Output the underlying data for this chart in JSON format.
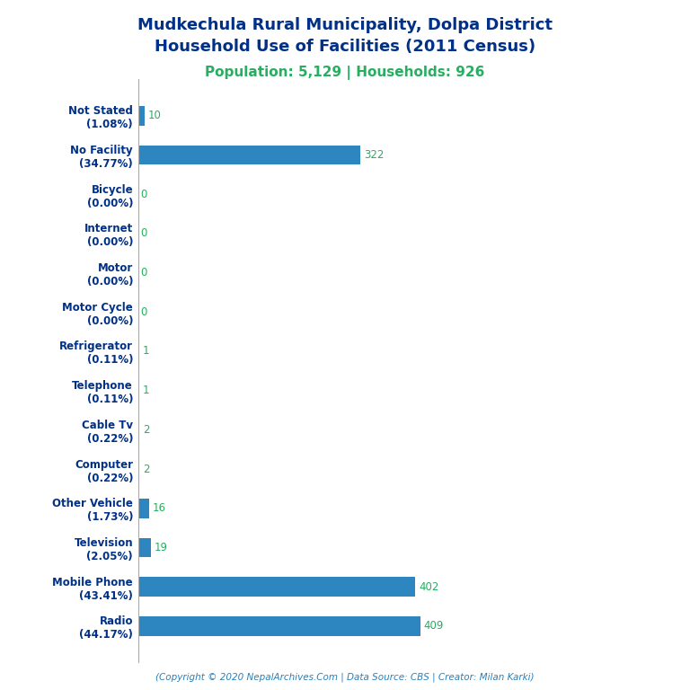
{
  "title_line1": "Mudkechula Rural Municipality, Dolpa District",
  "title_line2": "Household Use of Facilities (2011 Census)",
  "subtitle": "Population: 5,129 | Households: 926",
  "categories": [
    "Not Stated\n(1.08%)",
    "No Facility\n(34.77%)",
    "Bicycle\n(0.00%)",
    "Internet\n(0.00%)",
    "Motor\n(0.00%)",
    "Motor Cycle\n(0.00%)",
    "Refrigerator\n(0.11%)",
    "Telephone\n(0.11%)",
    "Cable Tv\n(0.22%)",
    "Computer\n(0.22%)",
    "Other Vehicle\n(1.73%)",
    "Television\n(2.05%)",
    "Mobile Phone\n(43.41%)",
    "Radio\n(44.17%)"
  ],
  "values": [
    10,
    322,
    0,
    0,
    0,
    0,
    1,
    1,
    2,
    2,
    16,
    19,
    402,
    409
  ],
  "bar_color": "#2E86C1",
  "value_color": "#27ae60",
  "title_color": "#003087",
  "subtitle_color": "#27ae60",
  "label_color": "#003087",
  "copyright_color": "#2980b9",
  "copyright_text": "(Copyright © 2020 NepalArchives.Com | Data Source: CBS | Creator: Milan Karki)",
  "title_fontsize": 13,
  "subtitle_fontsize": 11,
  "label_fontsize": 8.5,
  "value_fontsize": 8.5,
  "xlim": [
    0,
    750
  ],
  "bar_height": 0.5
}
